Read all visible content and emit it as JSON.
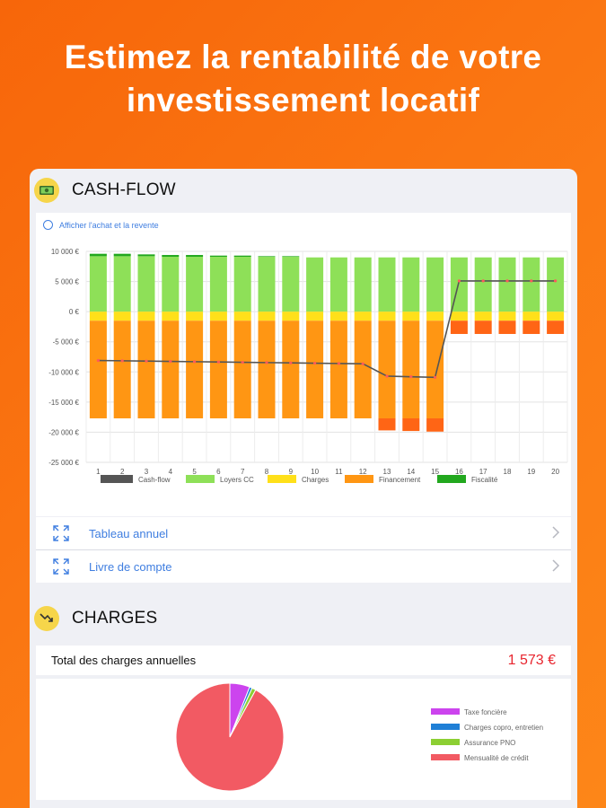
{
  "headline": {
    "line1": "Estimez la rentabilité de votre",
    "line2": "investissement locatif"
  },
  "cashflow": {
    "title": "CASH-FLOW",
    "icon": "money-icon",
    "toggle_label": "Afficher l'achat et la revente",
    "links": [
      {
        "label": "Tableau annuel",
        "icon": "expand-icon"
      },
      {
        "label": "Livre de compte",
        "icon": "expand-icon"
      }
    ]
  },
  "chart_data": {
    "type": "bar",
    "stacked": true,
    "categories": [
      "1",
      "2",
      "3",
      "4",
      "5",
      "6",
      "7",
      "8",
      "9",
      "10",
      "11",
      "12",
      "13",
      "14",
      "15",
      "16",
      "17",
      "18",
      "19",
      "20"
    ],
    "ylim": [
      -25000,
      10000
    ],
    "yticks": [
      10000,
      5000,
      0,
      -5000,
      -10000,
      -15000,
      -20000,
      -25000
    ],
    "ytick_labels": [
      "10 000 €",
      "5 000 €",
      "0 €",
      "-5 000 €",
      "-10 000 €",
      "-15 000 €",
      "-20 000 €",
      "-25 000 €"
    ],
    "grid": true,
    "legend_position": "bottom",
    "series": [
      {
        "name": "Cash-flow",
        "kind": "line",
        "color": "#555555",
        "values": [
          -8100,
          -8150,
          -8200,
          -8250,
          -8300,
          -8350,
          -8400,
          -8450,
          -8500,
          -8550,
          -8600,
          -8650,
          -10700,
          -10800,
          -10900,
          5100,
          5100,
          5100,
          5100,
          5100
        ]
      },
      {
        "name": "Loyers CC",
        "kind": "bar",
        "color": "#8ee058",
        "values": [
          9200,
          9200,
          9200,
          9100,
          9100,
          9100,
          9100,
          9100,
          9100,
          9000,
          9000,
          9000,
          9000,
          9000,
          9000,
          9000,
          9000,
          9000,
          9000,
          9000
        ]
      },
      {
        "name": "Charges",
        "kind": "bar",
        "color": "#ffe01a",
        "values": [
          -1500,
          -1500,
          -1500,
          -1500,
          -1500,
          -1500,
          -1500,
          -1500,
          -1500,
          -1500,
          -1500,
          -1500,
          -1500,
          -1500,
          -1500,
          -1500,
          -1500,
          -1500,
          -1500,
          -1500
        ]
      },
      {
        "name": "Financement",
        "kind": "bar",
        "color": "#ff9613",
        "values": [
          -16200,
          -16200,
          -16200,
          -16200,
          -16200,
          -16200,
          -16200,
          -16200,
          -16200,
          -16200,
          -16200,
          -16200,
          -16200,
          -16200,
          -16200,
          0,
          0,
          0,
          0,
          0
        ]
      },
      {
        "name": "Fiscalité",
        "kind": "bar",
        "color": "#22a81e",
        "values": [
          400,
          400,
          300,
          300,
          300,
          200,
          200,
          100,
          100,
          0,
          0,
          0,
          -2000,
          -2100,
          -2200,
          -2200,
          -2200,
          -2200,
          -2200,
          -2200
        ]
      }
    ],
    "extra_colors": {
      "fiscalite_negative": "#ff6515"
    }
  },
  "charges": {
    "title": "CHARGES",
    "icon": "trend-down-icon",
    "total_label": "Total des charges annuelles",
    "total_value": "1 573 €",
    "pie": {
      "slices": [
        {
          "name": "Taxe foncière",
          "value": 6.0,
          "color": "#cc44ee"
        },
        {
          "name": "Charges copro, entretien",
          "value": 0.8,
          "color": "#1f7fd6"
        },
        {
          "name": "Assurance PNO",
          "value": 1.2,
          "color": "#8ccf33"
        },
        {
          "name": "Mensualité de crédit",
          "value": 92.0,
          "color": "#f25a63"
        }
      ]
    }
  }
}
